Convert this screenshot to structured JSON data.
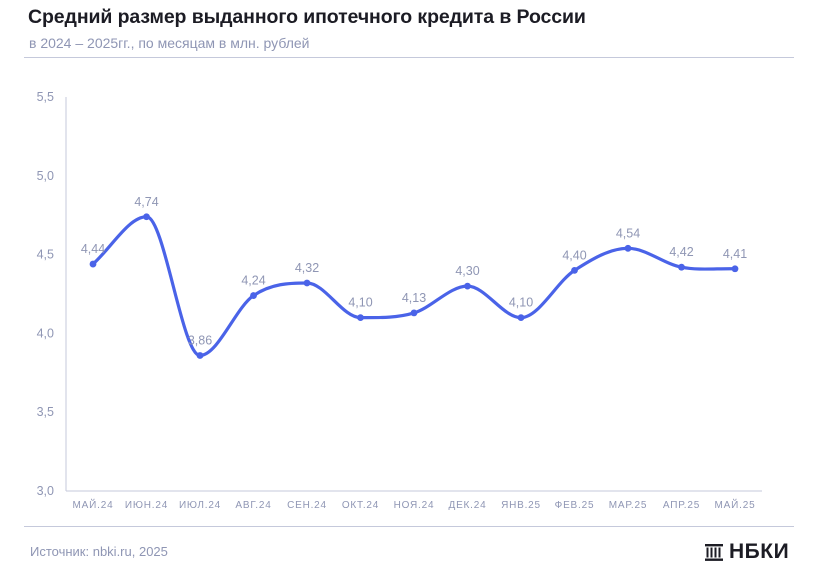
{
  "header": {
    "title": "Средний размер выданного ипотечного кредита в России",
    "subtitle": "в 2024 – 2025гг., по месяцам в млн. рублей"
  },
  "footer": {
    "source": "Источник: nbki.ru, 2025",
    "logo_text": "НБКИ",
    "logo_icon": "columns-building-icon"
  },
  "colors": {
    "line": "#4a63e8",
    "labels": "#8f96b4",
    "axis": "#c5c9db",
    "title": "#1c1c24"
  },
  "chart_data": {
    "type": "line",
    "title": "Средний размер выданного ипотечного кредита в России",
    "subtitle": "в 2024 – 2025гг., по месяцам в млн. рублей",
    "xlabel": "",
    "ylabel": "",
    "categories": [
      "МАЙ.24",
      "ИЮН.24",
      "ИЮЛ.24",
      "АВГ.24",
      "СЕН.24",
      "ОКТ.24",
      "НОЯ.24",
      "ДЕК.24",
      "ЯНВ.25",
      "ФЕВ.25",
      "МАР.25",
      "АПР.25",
      "МАЙ.25"
    ],
    "values": [
      4.44,
      4.74,
      3.86,
      4.24,
      4.32,
      4.1,
      4.13,
      4.3,
      4.1,
      4.4,
      4.54,
      4.42,
      4.41
    ],
    "value_labels": [
      "4,44",
      "4,74",
      "3,86",
      "4,24",
      "4,32",
      "4,10",
      "4,13",
      "4,30",
      "4,10",
      "4,40",
      "4,54",
      "4,42",
      "4,41"
    ],
    "ylim": [
      3.0,
      5.5
    ],
    "yticks": [
      3.0,
      3.5,
      4.0,
      4.5,
      5.0,
      5.5
    ],
    "ytick_labels": [
      "3,0",
      "3,5",
      "4,0",
      "4,5",
      "5,0",
      "5,5"
    ],
    "grid": false,
    "smooth": true
  }
}
